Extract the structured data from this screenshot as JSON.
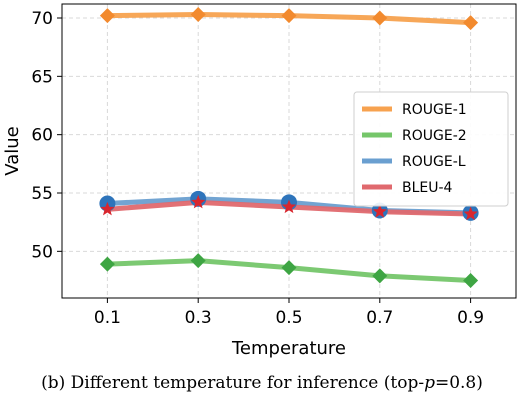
{
  "chart_data": {
    "type": "line",
    "title": "",
    "xlabel": "Temperature",
    "ylabel": "Value",
    "x": [
      "0.1",
      "0.3",
      "0.5",
      "0.7",
      "0.9"
    ],
    "x_values": [
      0.1,
      0.3,
      0.5,
      0.7,
      0.9
    ],
    "xlim": [
      0.0,
      1.0
    ],
    "ylim": [
      46.0,
      71.2
    ],
    "y_ticks": [
      "50",
      "55",
      "60",
      "65",
      "70"
    ],
    "y_tick_values": [
      50,
      55,
      60,
      65,
      70
    ],
    "grid": true,
    "legend_placement": "center-right",
    "series": [
      {
        "name": "ROUGE-1",
        "color": "#f7a24f",
        "marker": "diamond",
        "values": [
          70.2,
          70.3,
          70.2,
          70.0,
          69.6
        ]
      },
      {
        "name": "ROUGE-2",
        "color": "#75c66a",
        "marker": "diamond",
        "values": [
          48.9,
          49.2,
          48.6,
          47.9,
          47.5
        ]
      },
      {
        "name": "ROUGE-L",
        "color": "#6a9fd0",
        "marker": "circle",
        "values": [
          54.1,
          54.5,
          54.2,
          53.5,
          53.3
        ]
      },
      {
        "name": "BLEU-4",
        "color": "#e0696e",
        "marker": "star",
        "values": [
          53.6,
          54.2,
          53.8,
          53.4,
          53.2
        ]
      }
    ],
    "marker_colors": {
      "ROUGE-1": "#f28a2e",
      "ROUGE-2": "#3ea543",
      "ROUGE-L": "#2e74bb",
      "BLEU-4": "#d8262e"
    }
  },
  "caption": {
    "prefix": "(b) Different temperature for inference (top-",
    "italic": "p",
    "suffix": "=0.8)"
  }
}
